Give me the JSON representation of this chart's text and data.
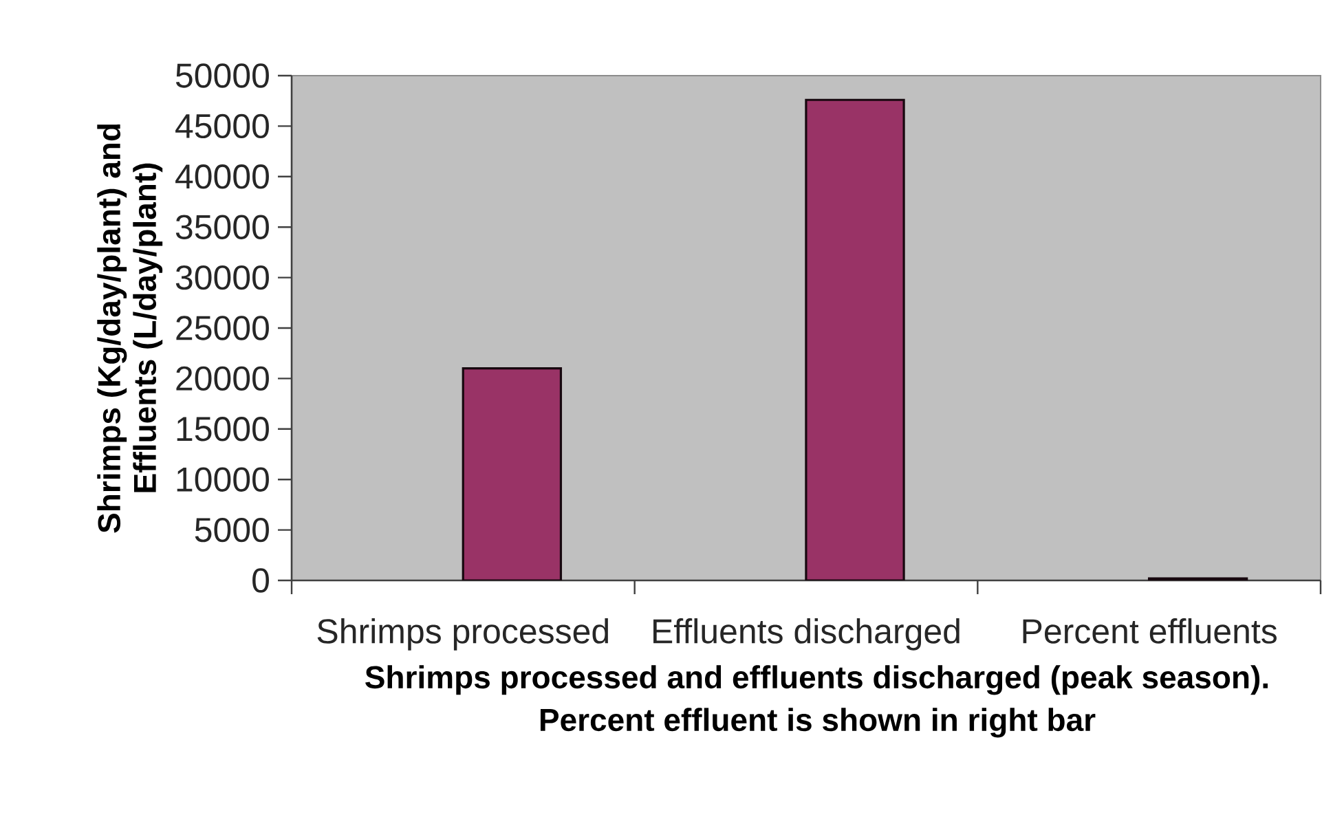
{
  "chart_data": {
    "type": "bar",
    "xlabel": "Shrimps processed and effluents discharged (peak season). Percent effluent is shown in right bar",
    "ylabel": "Shrimps (Kg/day/plant) and Effluents (L/day/plant)",
    "categories": [
      "Shrimps processed",
      "Effluents discharged",
      "Percent effluents"
    ],
    "values": [
      21000,
      47600,
      200
    ],
    "color": "#993366",
    "ylim": [
      0,
      50000
    ],
    "yticks": [
      0,
      5000,
      10000,
      15000,
      20000,
      25000,
      30000,
      35000,
      40000,
      45000,
      50000
    ]
  }
}
